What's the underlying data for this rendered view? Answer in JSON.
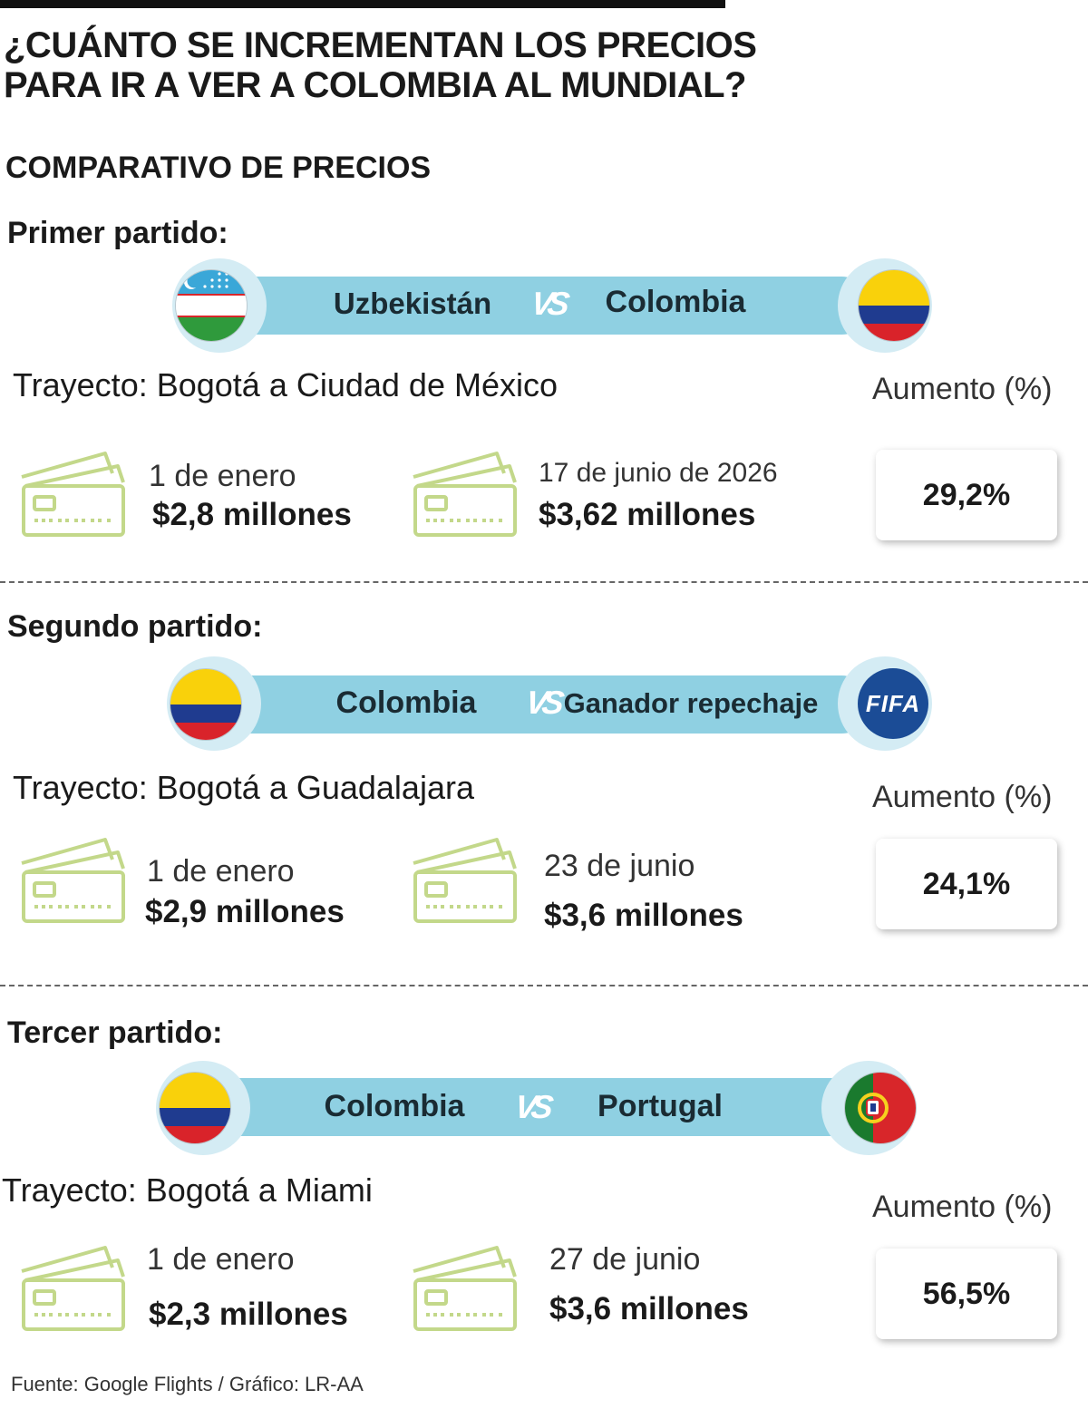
{
  "title_line1": "¿CUÁNTO SE INCREMENTAN LOS PRECIOS",
  "title_line2": "PARA IR A VER A COLOMBIA AL MUNDIAL?",
  "subtitle": "COMPARATIVO DE PRECIOS",
  "vs_text": "VS",
  "aumento_label": "Aumento (%)",
  "matches": [
    {
      "label": "Primer partido:",
      "team_left": "Uzbekistán",
      "team_right": "Colombia",
      "flag_left": "uzbekistan-flag",
      "flag_right": "colombia-flag",
      "route": "Trayecto: Bogotá a Ciudad de México",
      "date_before": "1 de enero",
      "price_before": "$2,8 millones",
      "date_after": "17 de junio de 2026",
      "price_after": "$3,62 millones",
      "increase": "29,2%"
    },
    {
      "label": "Segundo partido:",
      "team_left": "Colombia",
      "team_right": "Ganador repechaje",
      "flag_left": "colombia-flag",
      "flag_right": "fifa-logo",
      "fifa_text": "FIFA",
      "route": "Trayecto: Bogotá a Guadalajara",
      "date_before": "1 de enero",
      "price_before": "$2,9 millones",
      "date_after": "23 de junio",
      "price_after": "$3,6 millones",
      "increase": "24,1%"
    },
    {
      "label": "Tercer partido:",
      "team_left": "Colombia",
      "team_right": "Portugal",
      "flag_left": "colombia-flag",
      "flag_right": "portugal-flag",
      "route": "Trayecto: Bogotá a Miami",
      "date_before": "1 de enero",
      "price_before": "$2,3 millones",
      "date_after": "27 de junio",
      "price_after": "$3,6 millones",
      "increase": "56,5%"
    }
  ],
  "source": "Fuente: Google Flights / Gráfico: LR-AA",
  "colors": {
    "bar": "#8fd0e2",
    "halo": "#d4ecf4",
    "card_icon": "#c3d88a",
    "colombia_yellow": "#f9d10b",
    "colombia_blue": "#1f3b8f",
    "colombia_red": "#d9232a",
    "uzbek_blue": "#3aa7d8",
    "uzbek_green": "#2f9a3c",
    "portugal_green": "#1a7a2e",
    "portugal_red": "#d8262a",
    "fifa_blue": "#1b4c96"
  }
}
